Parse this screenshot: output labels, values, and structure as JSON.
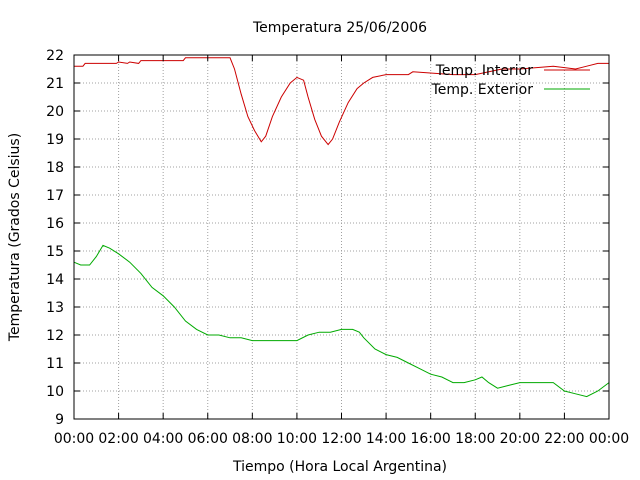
{
  "chart_data": {
    "type": "line",
    "title": "Temperatura 25/06/2006",
    "xlabel": "Tiempo (Hora Local Argentina)",
    "ylabel": "Temperatura (Grados Celsius)",
    "xlim": [
      0,
      24
    ],
    "ylim": [
      9,
      22
    ],
    "x_tick_labels": [
      "00:00",
      "02:00",
      "04:00",
      "06:00",
      "08:00",
      "10:00",
      "12:00",
      "14:00",
      "16:00",
      "18:00",
      "20:00",
      "22:00",
      "00:00"
    ],
    "y_ticks": [
      9,
      10,
      11,
      12,
      13,
      14,
      15,
      16,
      17,
      18,
      19,
      20,
      21,
      22
    ],
    "grid": true,
    "legend_position": "top-right",
    "series": [
      {
        "name": "Temp. Interior",
        "color": "#cc0000",
        "x": [
          0,
          0.4,
          0.5,
          1.9,
          2.0,
          2.4,
          2.5,
          2.9,
          3.0,
          4.9,
          5.0,
          7.0,
          7.2,
          7.5,
          7.8,
          8.1,
          8.4,
          8.6,
          8.9,
          9.3,
          9.7,
          10.0,
          10.3,
          10.5,
          10.8,
          11.1,
          11.4,
          11.6,
          11.9,
          12.3,
          12.7,
          13.0,
          13.4,
          14.0,
          15.0,
          15.2,
          17.0,
          18.0,
          19.2,
          20.0,
          21.5,
          22.5,
          23.0,
          23.5,
          24.0
        ],
        "y": [
          21.6,
          21.6,
          21.7,
          21.7,
          21.75,
          21.7,
          21.75,
          21.7,
          21.8,
          21.8,
          21.9,
          21.9,
          21.5,
          20.6,
          19.8,
          19.3,
          18.9,
          19.1,
          19.8,
          20.5,
          21.0,
          21.2,
          21.1,
          20.5,
          19.7,
          19.1,
          18.8,
          19.0,
          19.6,
          20.3,
          20.8,
          21.0,
          21.2,
          21.3,
          21.3,
          21.4,
          21.3,
          21.3,
          21.5,
          21.5,
          21.6,
          21.5,
          21.6,
          21.7,
          21.7
        ]
      },
      {
        "name": "Temp. Exterior",
        "color": "#00aa00",
        "x": [
          0,
          0.3,
          0.7,
          1.0,
          1.3,
          1.6,
          2.0,
          2.5,
          3.0,
          3.5,
          4.0,
          4.5,
          5.0,
          5.5,
          6.0,
          6.5,
          7.0,
          7.5,
          8.0,
          9.0,
          10.0,
          10.5,
          11.0,
          11.5,
          12.0,
          12.5,
          12.8,
          13.0,
          13.5,
          14.0,
          14.5,
          15.0,
          15.5,
          16.0,
          16.5,
          17.0,
          17.5,
          18.0,
          18.3,
          18.6,
          19.0,
          19.5,
          20.0,
          21.0,
          21.5,
          22.0,
          22.5,
          23.0,
          23.5,
          24.0
        ],
        "y": [
          14.6,
          14.5,
          14.5,
          14.8,
          15.2,
          15.1,
          14.9,
          14.6,
          14.2,
          13.7,
          13.4,
          13.0,
          12.5,
          12.2,
          12.0,
          12.0,
          11.9,
          11.9,
          11.8,
          11.8,
          11.8,
          12.0,
          12.1,
          12.1,
          12.2,
          12.2,
          12.1,
          11.9,
          11.5,
          11.3,
          11.2,
          11.0,
          10.8,
          10.6,
          10.5,
          10.3,
          10.3,
          10.4,
          10.5,
          10.3,
          10.1,
          10.2,
          10.3,
          10.3,
          10.3,
          10.0,
          9.9,
          9.8,
          10.0,
          10.3
        ]
      }
    ]
  }
}
